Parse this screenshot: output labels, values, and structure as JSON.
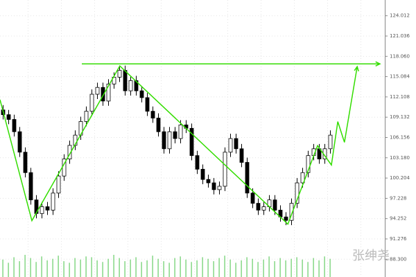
{
  "chart_data": {
    "type": "candlestick",
    "watermark": "张绅尧",
    "ylim": [
      85.69,
      126.32
    ],
    "xlim": [
      -0.5,
      68.875
    ],
    "grid": true,
    "yticks": [
      {
        "value": 88.3,
        "label": "88.300"
      },
      91.276,
      94.252,
      97.228,
      100.204,
      {
        "value": 103.18,
        "label": "103.180"
      },
      {
        "value": 106.156,
        "label": "106.156"
      },
      109.132,
      112.108,
      115.084,
      {
        "value": 118.06,
        "label": "118.060"
      },
      121.036,
      124.012
    ],
    "up_color": "#ffffff",
    "down_color": "#000000",
    "open": [
      110.2,
      109.5,
      108.8,
      107,
      104,
      101,
      97,
      95,
      96,
      95.5,
      98,
      100.5,
      103,
      105,
      106.5,
      108.5,
      110,
      112.5,
      113.5,
      111.5,
      114,
      115,
      116,
      113,
      114.5,
      113,
      112,
      110,
      109,
      107,
      104.5,
      107,
      106,
      108,
      107.5,
      103.5,
      101.5,
      100,
      99.5,
      98.5,
      99,
      104,
      106,
      104.5,
      102.5,
      98,
      96.5,
      95.5,
      96,
      97,
      95.5,
      94.5,
      94,
      96.5,
      99.5,
      101,
      103.5,
      104.5,
      103,
      104.5
    ],
    "high": [
      110.9,
      110.2,
      109.5,
      107.7,
      104.7,
      101.7,
      97.7,
      96.7,
      96.7,
      98.7,
      101.2,
      103.7,
      105.7,
      107.2,
      109.2,
      110.7,
      113.2,
      114.2,
      114.2,
      114.7,
      115.7,
      116.7,
      116.7,
      115.2,
      115.2,
      113.7,
      112.7,
      110.7,
      109.7,
      107.7,
      107.7,
      107.7,
      108.7,
      108.7,
      108.2,
      104.2,
      102.2,
      100.7,
      100.2,
      99.7,
      104.7,
      106.7,
      106.7,
      105.2,
      103.2,
      98.7,
      97.2,
      96.7,
      97.7,
      97.7,
      96.2,
      95.2,
      97.2,
      100.2,
      101.7,
      104.2,
      105.2,
      105.2,
      105.2,
      107.2
    ],
    "low": [
      108.8,
      108.1,
      106.3,
      103.3,
      100.3,
      96.3,
      94.3,
      94.3,
      94.8,
      94.8,
      97.3,
      99.8,
      102.3,
      104.3,
      105.8,
      107.8,
      109.3,
      111.8,
      110.8,
      110.8,
      113.3,
      114.3,
      112.3,
      112.3,
      112.3,
      111.3,
      109.3,
      108.3,
      106.3,
      103.8,
      103.8,
      105.3,
      105.3,
      106.8,
      102.8,
      100.8,
      99.3,
      98.8,
      97.8,
      97.8,
      98.3,
      103.3,
      103.8,
      101.8,
      97.3,
      95.8,
      94.8,
      94.8,
      95.3,
      94.8,
      93.8,
      93.3,
      93.3,
      95.8,
      98.8,
      100.3,
      102.8,
      102.3,
      102.3,
      103.8
    ],
    "close": [
      109.5,
      108.8,
      107,
      104,
      101,
      97,
      95,
      96,
      95.5,
      98,
      100.5,
      103,
      105,
      106.5,
      108.5,
      110,
      112.5,
      113.5,
      111.5,
      114,
      115,
      116,
      113,
      114.5,
      113,
      112,
      110,
      109,
      107,
      104.5,
      107,
      106,
      108,
      107.5,
      103.5,
      101.5,
      100,
      99.5,
      98.5,
      99,
      104,
      106,
      104.5,
      102.5,
      98,
      96.5,
      95.5,
      96,
      97,
      95.5,
      94.5,
      94,
      96.5,
      99.5,
      101,
      103.5,
      104.5,
      103,
      104.5,
      106.5
    ],
    "volume": [
      22,
      18,
      25,
      20,
      28,
      24,
      19,
      26,
      21,
      23,
      27,
      20,
      18,
      24,
      22,
      26,
      25,
      21,
      19,
      23,
      28,
      24,
      20,
      22,
      25,
      19,
      21,
      27,
      23,
      20,
      18,
      24,
      26,
      22,
      19,
      21,
      25,
      23,
      20,
      24,
      27,
      22,
      18,
      21,
      25,
      23,
      19,
      22,
      26,
      20,
      24,
      21,
      23,
      25,
      22,
      19,
      24,
      21,
      26,
      23
    ],
    "annotations": [
      {
        "color": "#33dd00",
        "arrow": false,
        "x": [
          -0.5,
          5.25,
          21.1,
          51.4,
          56.75,
          59.25,
          60.4,
          61.6,
          63.9
        ],
        "y": [
          111.7,
          93.95,
          116.65,
          93.44,
          104.95,
          102.12,
          108.48,
          105.45,
          116.55
        ]
      },
      {
        "color": "#33dd00",
        "arrow": true,
        "x": [
          14.25,
          68
        ],
        "y": [
          116.95,
          116.95
        ]
      }
    ]
  }
}
